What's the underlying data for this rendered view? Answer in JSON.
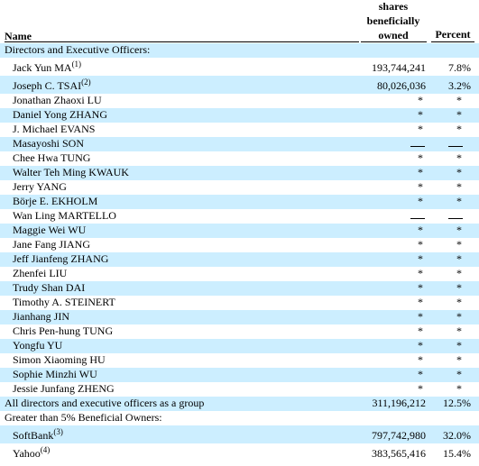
{
  "header": {
    "name": "Name",
    "shares_line1": "shares",
    "shares_line2": "beneficially",
    "shares_line3": "owned",
    "percent": "Percent"
  },
  "rows": [
    {
      "kind": "section",
      "name": "Directors and Executive Officers:",
      "shade": true
    },
    {
      "kind": "person",
      "name": "Jack Yun MA",
      "note": "(1)",
      "shares": "193,744,241",
      "percent": "7.8%",
      "shade": false,
      "tall": true
    },
    {
      "kind": "person",
      "name": "Joseph C. TSAI",
      "note": "(2)",
      "shares": "80,026,036",
      "percent": "3.2%",
      "shade": true,
      "tall": true
    },
    {
      "kind": "person",
      "name": "Jonathan Zhaoxi LU",
      "shares": "*",
      "percent": "*",
      "shade": false
    },
    {
      "kind": "person",
      "name": "Daniel Yong ZHANG",
      "shares": "*",
      "percent": "*",
      "shade": true
    },
    {
      "kind": "person",
      "name": "J. Michael EVANS",
      "shares": "*",
      "percent": "*",
      "shade": false
    },
    {
      "kind": "person",
      "name": "Masayoshi SON",
      "shares": "—",
      "percent": "—",
      "shade": true
    },
    {
      "kind": "person",
      "name": "Chee Hwa TUNG",
      "shares": "*",
      "percent": "*",
      "shade": false
    },
    {
      "kind": "person",
      "name": "Walter Teh Ming KWAUK",
      "shares": "*",
      "percent": "*",
      "shade": true
    },
    {
      "kind": "person",
      "name": "Jerry YANG",
      "shares": "*",
      "percent": "*",
      "shade": false
    },
    {
      "kind": "person",
      "name": "Börje E. EKHOLM",
      "shares": "*",
      "percent": "*",
      "shade": true
    },
    {
      "kind": "person",
      "name": "Wan Ling MARTELLO",
      "shares": "—",
      "percent": "—",
      "shade": false
    },
    {
      "kind": "person",
      "name": "Maggie Wei WU",
      "shares": "*",
      "percent": "*",
      "shade": true
    },
    {
      "kind": "person",
      "name": "Jane Fang JIANG",
      "shares": "*",
      "percent": "*",
      "shade": false
    },
    {
      "kind": "person",
      "name": "Jeff Jianfeng ZHANG",
      "shares": "*",
      "percent": "*",
      "shade": true
    },
    {
      "kind": "person",
      "name": "Zhenfei LIU",
      "shares": "*",
      "percent": "*",
      "shade": false
    },
    {
      "kind": "person",
      "name": "Trudy Shan DAI",
      "shares": "*",
      "percent": "*",
      "shade": true
    },
    {
      "kind": "person",
      "name": "Timothy A. STEINERT",
      "shares": "*",
      "percent": "*",
      "shade": false
    },
    {
      "kind": "person",
      "name": "Jianhang JIN",
      "shares": "*",
      "percent": "*",
      "shade": true
    },
    {
      "kind": "person",
      "name": "Chris Pen-hung TUNG",
      "shares": "*",
      "percent": "*",
      "shade": false
    },
    {
      "kind": "person",
      "name": "Yongfu YU",
      "shares": "*",
      "percent": "*",
      "shade": true
    },
    {
      "kind": "person",
      "name": "Simon Xiaoming HU",
      "shares": "*",
      "percent": "*",
      "shade": false
    },
    {
      "kind": "person",
      "name": "Sophie Minzhi WU",
      "shares": "*",
      "percent": "*",
      "shade": true
    },
    {
      "kind": "person",
      "name": "Jessie Junfang ZHENG",
      "shares": "*",
      "percent": "*",
      "shade": false
    },
    {
      "kind": "section",
      "name": "All directors and executive officers as a group",
      "shares": "311,196,212",
      "percent": "12.5%",
      "shade": true
    },
    {
      "kind": "section",
      "name": "Greater than 5% Beneficial Owners:",
      "shade": false
    },
    {
      "kind": "person",
      "name": "SoftBank",
      "note": "(3)",
      "shares": "797,742,980",
      "percent": "32.0%",
      "shade": true,
      "tall": true
    },
    {
      "kind": "person",
      "name": "Yahoo",
      "note": "(4)",
      "shares": "383,565,416",
      "percent": "15.4%",
      "shade": false,
      "tall": true
    }
  ]
}
